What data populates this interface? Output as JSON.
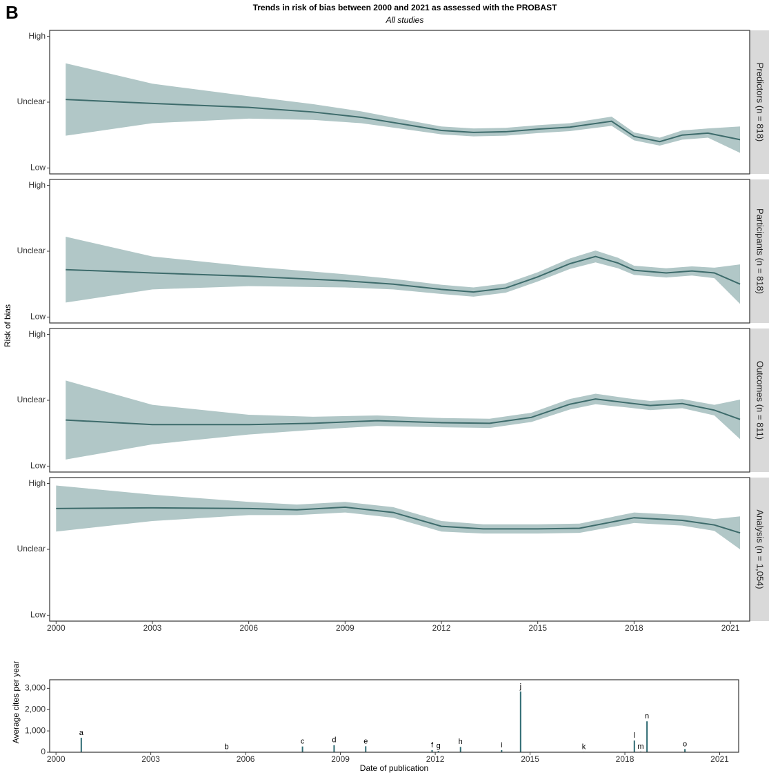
{
  "figure": {
    "label": "B",
    "title": "Trends in risk of bias between 2000 and 2021 as assessed with the PROBAST",
    "subtitle": "All studies",
    "y_label": "Risk of bias"
  },
  "chart_data": [
    {
      "type": "line",
      "facet": "Predictors (n = 818)",
      "color": "#3d6b6b",
      "band_color": "#a9c1c1",
      "x": [
        2000.3,
        2003,
        2006,
        2008,
        2009.5,
        2011,
        2012,
        2013,
        2014,
        2015,
        2016,
        2017.3,
        2018,
        2018.8,
        2019.5,
        2020.3,
        2021.3
      ],
      "values": [
        1.04,
        0.98,
        0.92,
        0.85,
        0.77,
        0.65,
        0.57,
        0.54,
        0.55,
        0.59,
        0.62,
        0.71,
        0.48,
        0.4,
        0.5,
        0.53,
        0.43
      ],
      "upper": [
        1.59,
        1.28,
        1.09,
        0.97,
        0.86,
        0.72,
        0.63,
        0.6,
        0.61,
        0.65,
        0.68,
        0.78,
        0.54,
        0.46,
        0.57,
        0.6,
        0.63
      ],
      "lower": [
        0.49,
        0.68,
        0.75,
        0.73,
        0.68,
        0.58,
        0.51,
        0.48,
        0.49,
        0.53,
        0.56,
        0.64,
        0.42,
        0.34,
        0.43,
        0.46,
        0.23
      ],
      "xlim": [
        1999.8,
        2021.6
      ],
      "ylim": [
        -0.09,
        2.09
      ],
      "yticks": [
        {
          "value": 2,
          "label": "High"
        },
        {
          "value": 1,
          "label": "Unclear"
        },
        {
          "value": 0,
          "label": "Low"
        }
      ]
    },
    {
      "type": "line",
      "facet": "Participants (n = 818)",
      "color": "#3d6b6b",
      "band_color": "#a9c1c1",
      "x": [
        2000.3,
        2003,
        2006,
        2009,
        2010.5,
        2012,
        2013,
        2014,
        2015,
        2016,
        2016.8,
        2017.5,
        2018,
        2019,
        2019.8,
        2020.5,
        2021.3
      ],
      "values": [
        0.72,
        0.67,
        0.62,
        0.55,
        0.5,
        0.42,
        0.38,
        0.44,
        0.61,
        0.81,
        0.92,
        0.82,
        0.71,
        0.67,
        0.7,
        0.67,
        0.5
      ],
      "upper": [
        1.22,
        0.92,
        0.77,
        0.65,
        0.58,
        0.49,
        0.45,
        0.51,
        0.68,
        0.89,
        1.01,
        0.9,
        0.78,
        0.74,
        0.77,
        0.75,
        0.8
      ],
      "lower": [
        0.22,
        0.42,
        0.47,
        0.45,
        0.42,
        0.35,
        0.31,
        0.37,
        0.54,
        0.73,
        0.83,
        0.74,
        0.64,
        0.6,
        0.63,
        0.59,
        0.2
      ],
      "xlim": [
        1999.8,
        2021.6
      ],
      "ylim": [
        -0.09,
        2.09
      ],
      "yticks": [
        {
          "value": 2,
          "label": "High"
        },
        {
          "value": 1,
          "label": "Unclear"
        },
        {
          "value": 0,
          "label": "Low"
        }
      ]
    },
    {
      "type": "line",
      "facet": "Outcomes (n = 811)",
      "color": "#3d6b6b",
      "band_color": "#a9c1c1",
      "x": [
        2000.3,
        2003,
        2006,
        2008,
        2010,
        2012,
        2013.5,
        2014.8,
        2016,
        2016.8,
        2017.8,
        2018.5,
        2019.5,
        2020.5,
        2021.3
      ],
      "values": [
        0.7,
        0.63,
        0.63,
        0.65,
        0.69,
        0.66,
        0.65,
        0.74,
        0.94,
        1.02,
        0.96,
        0.92,
        0.95,
        0.85,
        0.71
      ],
      "upper": [
        1.3,
        0.93,
        0.78,
        0.75,
        0.77,
        0.73,
        0.72,
        0.81,
        1.02,
        1.1,
        1.03,
        0.99,
        1.02,
        0.93,
        1.01
      ],
      "lower": [
        0.1,
        0.33,
        0.48,
        0.55,
        0.61,
        0.59,
        0.58,
        0.67,
        0.86,
        0.94,
        0.89,
        0.85,
        0.88,
        0.77,
        0.41
      ],
      "xlim": [
        1999.8,
        2021.6
      ],
      "ylim": [
        -0.09,
        2.09
      ],
      "yticks": [
        {
          "value": 2,
          "label": "High"
        },
        {
          "value": 1,
          "label": "Unclear"
        },
        {
          "value": 0,
          "label": "Low"
        }
      ]
    },
    {
      "type": "line",
      "facet": "Analysis (n = 1,054)",
      "color": "#3d6b6b",
      "band_color": "#a9c1c1",
      "x": [
        2000,
        2003,
        2006,
        2007.5,
        2009,
        2010.5,
        2012,
        2013.3,
        2015,
        2016.3,
        2018,
        2019.5,
        2020.5,
        2021.3
      ],
      "values": [
        1.62,
        1.63,
        1.62,
        1.6,
        1.64,
        1.56,
        1.35,
        1.31,
        1.31,
        1.32,
        1.48,
        1.44,
        1.37,
        1.25
      ],
      "upper": [
        1.97,
        1.83,
        1.72,
        1.68,
        1.72,
        1.64,
        1.43,
        1.38,
        1.38,
        1.39,
        1.56,
        1.52,
        1.46,
        1.5
      ],
      "lower": [
        1.27,
        1.43,
        1.52,
        1.52,
        1.56,
        1.48,
        1.27,
        1.24,
        1.24,
        1.25,
        1.4,
        1.36,
        1.28,
        1.0
      ],
      "xlim": [
        1999.8,
        2021.6
      ],
      "ylim": [
        -0.09,
        2.09
      ],
      "yticks": [
        {
          "value": 2,
          "label": "High"
        },
        {
          "value": 1,
          "label": "Unclear"
        },
        {
          "value": 0,
          "label": "Low"
        }
      ],
      "xticks": [
        2000,
        2003,
        2006,
        2009,
        2012,
        2015,
        2018,
        2021
      ]
    },
    {
      "type": "spike",
      "color": "#2f6b73",
      "y_label": "Average cites per year",
      "x_label": "Date of publication",
      "x": [
        2000.8,
        2005.4,
        2007.8,
        2008.8,
        2009.8,
        2011.9,
        2012.1,
        2012.8,
        2014.1,
        2014.7,
        2016.7,
        2018.3,
        2018.5,
        2018.7,
        2019.9
      ],
      "values": [
        680,
        20,
        270,
        330,
        280,
        100,
        60,
        250,
        100,
        2850,
        20,
        550,
        30,
        1450,
        150
      ],
      "labels": [
        "a",
        "b",
        "c",
        "d",
        "e",
        "f",
        "g",
        "h",
        "i",
        "j",
        "k",
        "l",
        "m",
        "n",
        "o"
      ],
      "xlim": [
        1999.8,
        2021.6
      ],
      "ylim": [
        0,
        3400
      ],
      "yticks": [
        0,
        {
          "value": 1000,
          "label": "1,000"
        },
        {
          "value": 2000,
          "label": "2,000"
        },
        {
          "value": 3000,
          "label": "3,000"
        }
      ],
      "xticks": [
        2000,
        2003,
        2006,
        2009,
        2012,
        2015,
        2018,
        2021
      ]
    }
  ]
}
